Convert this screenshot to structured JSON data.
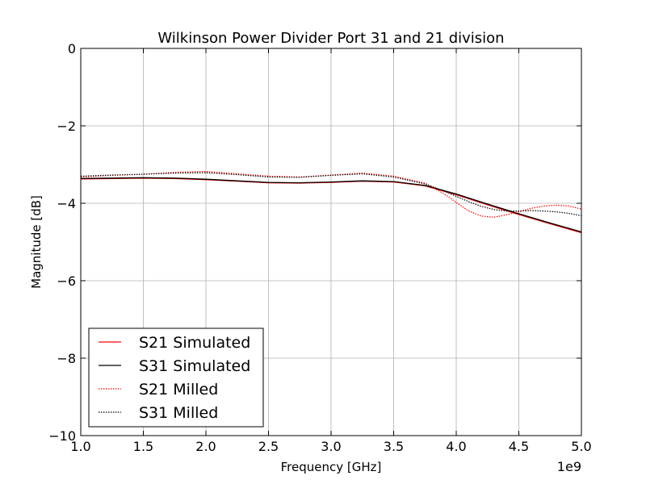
{
  "chart_data": {
    "type": "line",
    "title": "Wilkinson Power Divider Port 31 and 21 division",
    "xlabel": "Frequency [GHz]",
    "ylabel": "Magnitude [dB]",
    "x_offset_label": "1e9",
    "xlim": [
      1.0,
      5.0
    ],
    "ylim": [
      -10,
      0
    ],
    "x_ticks": [
      "1.0",
      "1.5",
      "2.0",
      "2.5",
      "3.0",
      "3.5",
      "4.0",
      "4.5",
      "5.0"
    ],
    "y_ticks": [
      "0",
      "−2",
      "−4",
      "−6",
      "−8",
      "−10"
    ],
    "grid": true,
    "legend_position": "lower-left",
    "series": [
      {
        "name": "S21 Simulated",
        "color": "#ff0000",
        "style": "solid",
        "x": [
          1.0,
          1.25,
          1.5,
          1.75,
          2.0,
          2.25,
          2.5,
          2.75,
          3.0,
          3.25,
          3.5,
          3.75,
          4.0,
          4.25,
          4.5,
          4.75,
          5.0
        ],
        "y": [
          -3.37,
          -3.36,
          -3.35,
          -3.36,
          -3.39,
          -3.43,
          -3.47,
          -3.48,
          -3.46,
          -3.43,
          -3.45,
          -3.55,
          -3.78,
          -4.04,
          -4.29,
          -4.53,
          -4.76
        ]
      },
      {
        "name": "S31 Simulated",
        "color": "#000000",
        "style": "solid",
        "x": [
          1.0,
          1.25,
          1.5,
          1.75,
          2.0,
          2.25,
          2.5,
          2.75,
          3.0,
          3.25,
          3.5,
          3.75,
          4.0,
          4.25,
          4.5,
          4.75,
          5.0
        ],
        "y": [
          -3.36,
          -3.35,
          -3.34,
          -3.35,
          -3.38,
          -3.42,
          -3.46,
          -3.47,
          -3.45,
          -3.42,
          -3.44,
          -3.54,
          -3.76,
          -4.02,
          -4.27,
          -4.51,
          -4.74
        ]
      },
      {
        "name": "S21 Milled",
        "color": "#ff0000",
        "style": "dotted",
        "x": [
          1.0,
          1.25,
          1.5,
          1.75,
          2.0,
          2.25,
          2.5,
          2.75,
          3.0,
          3.25,
          3.5,
          3.75,
          3.9,
          4.0,
          4.1,
          4.2,
          4.3,
          4.4,
          4.5,
          4.6,
          4.7,
          4.8,
          4.9,
          5.0
        ],
        "y": [
          -3.32,
          -3.28,
          -3.25,
          -3.2,
          -3.18,
          -3.24,
          -3.3,
          -3.32,
          -3.27,
          -3.22,
          -3.3,
          -3.48,
          -3.75,
          -3.98,
          -4.2,
          -4.33,
          -4.36,
          -4.3,
          -4.22,
          -4.13,
          -4.07,
          -4.05,
          -4.07,
          -4.15
        ]
      },
      {
        "name": "S31 Milled",
        "color": "#000000",
        "style": "dotted",
        "x": [
          1.0,
          1.25,
          1.5,
          1.75,
          2.0,
          2.25,
          2.5,
          2.75,
          3.0,
          3.25,
          3.5,
          3.75,
          3.9,
          4.0,
          4.1,
          4.2,
          4.3,
          4.4,
          4.5,
          4.6,
          4.7,
          4.8,
          4.9,
          5.0
        ],
        "y": [
          -3.3,
          -3.27,
          -3.25,
          -3.22,
          -3.21,
          -3.26,
          -3.32,
          -3.33,
          -3.28,
          -3.24,
          -3.32,
          -3.5,
          -3.68,
          -3.82,
          -3.96,
          -4.08,
          -4.16,
          -4.2,
          -4.2,
          -4.19,
          -4.2,
          -4.22,
          -4.26,
          -4.32
        ]
      }
    ]
  }
}
